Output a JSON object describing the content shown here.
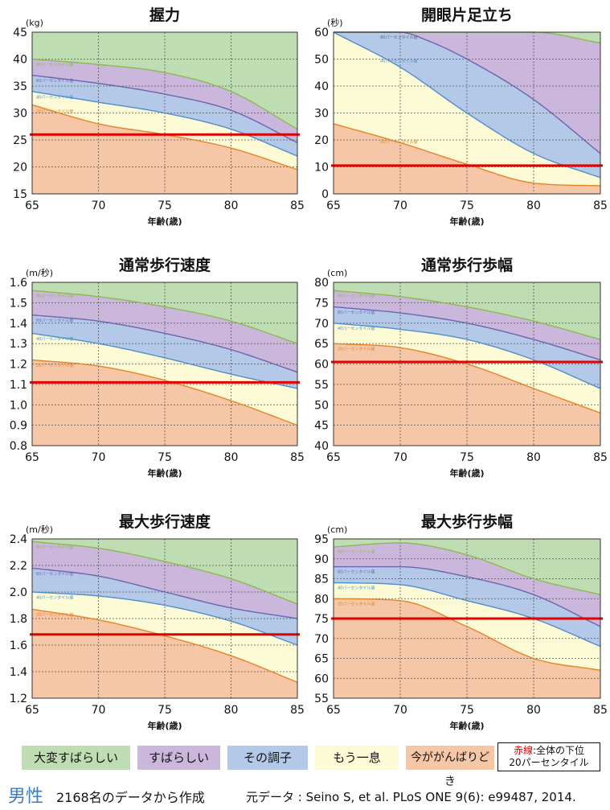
{
  "chart_data": [
    {
      "type": "area",
      "title": "握力",
      "unit": "(kg)",
      "xlabel": "年齢(歳)",
      "xlim": [
        65,
        85
      ],
      "xticks": [
        65,
        70,
        75,
        80,
        85
      ],
      "ylim": [
        15,
        45
      ],
      "yticks": [
        15,
        20,
        25,
        30,
        35,
        40,
        45
      ],
      "ydecimals": 0,
      "percentile_label_texts": [
        "80パーセンタイル値",
        "60パーセンタイル値",
        "40パーセンタイル値",
        "20パーセンタイル値"
      ],
      "red_line": 26,
      "series": [
        {
          "name": "80パーセンタイル値",
          "x": [
            65,
            70,
            75,
            80,
            85
          ],
          "values": [
            40,
            39,
            37.5,
            34,
            27
          ]
        },
        {
          "name": "60パーセンタイル値",
          "x": [
            65,
            70,
            75,
            80,
            85
          ],
          "values": [
            37,
            35.5,
            33.5,
            30.5,
            24.5
          ]
        },
        {
          "name": "40パーセンタイル値",
          "x": [
            65,
            70,
            75,
            80,
            85
          ],
          "values": [
            34,
            32,
            30,
            27,
            22
          ]
        },
        {
          "name": "20パーセンタイル値",
          "x": [
            65,
            70,
            75,
            80,
            85
          ],
          "values": [
            31.5,
            28,
            26,
            23.5,
            19.5
          ]
        }
      ]
    },
    {
      "type": "area",
      "title": "開眼片足立ち",
      "unit": "(秒)",
      "xlabel": "年齢(歳)",
      "xlim": [
        65,
        85
      ],
      "xticks": [
        65,
        70,
        75,
        80,
        85
      ],
      "ylim": [
        0,
        60
      ],
      "yticks": [
        0,
        10,
        20,
        30,
        40,
        50,
        60
      ],
      "ydecimals": 0,
      "percentile_label_texts": [
        "80パーセンタイル値",
        "60パーセンタイル値",
        "40パーセンタイル値",
        "20パーセンタイル値"
      ],
      "red_line": 10.5,
      "series": [
        {
          "name": "80パーセンタイル値",
          "x": [
            65,
            70,
            75,
            80,
            85
          ],
          "values": [
            60,
            60,
            60,
            60,
            56
          ]
        },
        {
          "name": "60パーセンタイル値",
          "x": [
            65,
            70,
            72,
            75,
            80,
            85
          ],
          "values": [
            60,
            60,
            57,
            50,
            35,
            15
          ]
        },
        {
          "name": "40パーセンタイル値",
          "x": [
            65,
            70,
            75,
            80,
            85
          ],
          "values": [
            60,
            47,
            30,
            15,
            6
          ]
        },
        {
          "name": "20パーセンタイル値",
          "x": [
            65,
            70,
            75,
            80,
            85
          ],
          "values": [
            26,
            19,
            11,
            4,
            3
          ]
        }
      ]
    },
    {
      "type": "area",
      "title": "通常歩行速度",
      "unit": "(m/秒)",
      "xlabel": "年齢(歳)",
      "xlim": [
        65,
        85
      ],
      "xticks": [
        65,
        70,
        75,
        80,
        85
      ],
      "ylim": [
        0.8,
        1.6
      ],
      "yticks": [
        0.8,
        0.9,
        1.0,
        1.1,
        1.2,
        1.3,
        1.4,
        1.5,
        1.6
      ],
      "ydecimals": 1,
      "percentile_label_texts": [
        "80パーセンタイル値",
        "60パーセンタイル値",
        "40パーセンタイル値",
        "20パーセンタイル値"
      ],
      "red_line": 1.11,
      "series": [
        {
          "name": "80パーセンタイル値",
          "x": [
            65,
            70,
            75,
            80,
            85
          ],
          "values": [
            1.56,
            1.53,
            1.48,
            1.41,
            1.3
          ]
        },
        {
          "name": "60パーセンタイル値",
          "x": [
            65,
            70,
            75,
            80,
            85
          ],
          "values": [
            1.44,
            1.41,
            1.35,
            1.27,
            1.16
          ]
        },
        {
          "name": "40パーセンタイル値",
          "x": [
            65,
            70,
            75,
            80,
            85
          ],
          "values": [
            1.35,
            1.3,
            1.23,
            1.15,
            1.08
          ]
        },
        {
          "name": "20パーセンタイル値",
          "x": [
            65,
            70,
            75,
            80,
            85
          ],
          "values": [
            1.22,
            1.19,
            1.12,
            1.02,
            0.9
          ]
        }
      ]
    },
    {
      "type": "area",
      "title": "通常歩行歩幅",
      "unit": "(cm)",
      "xlabel": "年齢(歳)",
      "xlim": [
        65,
        85
      ],
      "xticks": [
        65,
        70,
        75,
        80,
        85
      ],
      "ylim": [
        40,
        80
      ],
      "yticks": [
        40,
        45,
        50,
        55,
        60,
        65,
        70,
        75,
        80
      ],
      "ydecimals": 0,
      "percentile_label_texts": [
        "80パーセンタイル値",
        "60パーセンタイル値",
        "40パーセンタイル値",
        "20パーセンタイル値"
      ],
      "red_line": 60.5,
      "series": [
        {
          "name": "80パーセンタイル値",
          "x": [
            65,
            70,
            75,
            80,
            85
          ],
          "values": [
            78,
            76.5,
            74,
            70.5,
            66
          ]
        },
        {
          "name": "60パーセンタイル値",
          "x": [
            65,
            70,
            75,
            80,
            85
          ],
          "values": [
            74,
            72.5,
            70,
            66,
            61
          ]
        },
        {
          "name": "40パーセンタイル値",
          "x": [
            65,
            70,
            75,
            80,
            85
          ],
          "values": [
            70,
            68.5,
            66,
            61,
            54
          ]
        },
        {
          "name": "20パーセンタイル値",
          "x": [
            65,
            70,
            75,
            80,
            85
          ],
          "values": [
            65,
            64,
            60,
            54,
            48
          ]
        }
      ]
    },
    {
      "type": "area",
      "title": "最大歩行速度",
      "unit": "(m/秒)",
      "xlabel": "年齢(歳)",
      "xlim": [
        65,
        85
      ],
      "xticks": [
        65,
        70,
        75,
        80,
        85
      ],
      "ylim": [
        1.2,
        2.4
      ],
      "yticks": [
        1.2,
        1.4,
        1.6,
        1.8,
        2.0,
        2.2,
        2.4
      ],
      "ydecimals": 1,
      "percentile_label_texts": [
        "80パーセンタイル値",
        "60パーセンタイル値",
        "40パーセンタイル値",
        "20パーセンタイル値"
      ],
      "red_line": 1.68,
      "series": [
        {
          "name": "80パーセンタイル値",
          "x": [
            65,
            70,
            75,
            80,
            85
          ],
          "values": [
            2.38,
            2.33,
            2.23,
            2.1,
            1.91
          ]
        },
        {
          "name": "60パーセンタイル値",
          "x": [
            65,
            70,
            75,
            80,
            85
          ],
          "values": [
            2.18,
            2.12,
            2.0,
            1.88,
            1.8
          ]
        },
        {
          "name": "40パーセンタイル値",
          "x": [
            65,
            70,
            75,
            80,
            85
          ],
          "values": [
            2.0,
            1.97,
            1.9,
            1.78,
            1.6
          ]
        },
        {
          "name": "20パーセンタイル値",
          "x": [
            65,
            70,
            75,
            80,
            85
          ],
          "values": [
            1.87,
            1.79,
            1.67,
            1.52,
            1.32
          ]
        }
      ]
    },
    {
      "type": "area",
      "title": "最大歩行歩幅",
      "unit": "(cm)",
      "xlabel": "年齢(歳)",
      "xlim": [
        65,
        85
      ],
      "xticks": [
        65,
        70,
        75,
        80,
        85
      ],
      "ylim": [
        55,
        95
      ],
      "yticks": [
        55,
        60,
        65,
        70,
        75,
        80,
        85,
        90,
        95
      ],
      "ydecimals": 0,
      "percentile_label_texts": [
        "80パーセンタイル値",
        "60パーセンタイル値",
        "40パーセンタイル値",
        "20パーセンタイル値"
      ],
      "red_line": 75,
      "series": [
        {
          "name": "80パーセンタイル値",
          "x": [
            65,
            70,
            75,
            80,
            85
          ],
          "values": [
            93,
            94,
            91,
            85,
            81
          ]
        },
        {
          "name": "60パーセンタイル値",
          "x": [
            65,
            70,
            75,
            80,
            85
          ],
          "values": [
            88,
            88,
            85.5,
            81,
            73
          ]
        },
        {
          "name": "40パーセンタイル値",
          "x": [
            65,
            70,
            75,
            80,
            85
          ],
          "values": [
            84,
            83.5,
            79.5,
            75,
            68
          ]
        },
        {
          "name": "20パーセンタイル値",
          "x": [
            65,
            70,
            75,
            80,
            85
          ],
          "values": [
            80,
            79.5,
            73,
            65,
            62
          ]
        }
      ]
    }
  ],
  "zone_colors": [
    "#bfddb2",
    "#cbb7dc",
    "#b4c9e8",
    "#fdfad6",
    "#f6c7a6"
  ],
  "line_colors": [
    "#8db94f",
    "#6d64b0",
    "#4e8fca",
    "#e5832b"
  ],
  "red_line_color": "#e00000",
  "legend": {
    "items": [
      {
        "label": "大変すばらしい",
        "color": "#bfddb2"
      },
      {
        "label": "すばらしい",
        "color": "#cbb7dc"
      },
      {
        "label": "その調子",
        "color": "#b4c9e8"
      },
      {
        "label": "もう一息",
        "color": "#fdfad6"
      },
      {
        "label": "今ががんばりどき",
        "color": "#f6c7a6"
      }
    ],
    "red_line_title": "赤線",
    "red_line_text": ":全体の下位",
    "red_line_text2": "20パーセンタイル"
  },
  "footer": {
    "sex": "男性",
    "count_text": "2168名のデータから作成",
    "source_text": "元データ : Seino S, et al. PLoS ONE 9(6): e99487, 2014."
  }
}
